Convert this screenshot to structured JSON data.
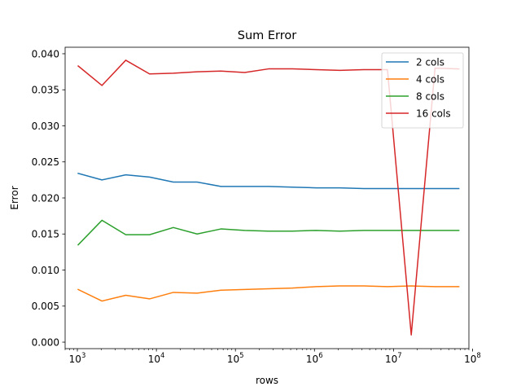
{
  "chart_data": {
    "type": "line",
    "title": "Sum Error",
    "xlabel": "rows",
    "ylabel": "Error",
    "x_scale": "log",
    "xlim": [
      700,
      90000000
    ],
    "ylim": [
      -0.0009,
      0.0409
    ],
    "x_ticks": [
      {
        "value": 1000,
        "base": "10",
        "exp": "3"
      },
      {
        "value": 10000,
        "base": "10",
        "exp": "4"
      },
      {
        "value": 100000,
        "base": "10",
        "exp": "5"
      },
      {
        "value": 1000000,
        "base": "10",
        "exp": "6"
      },
      {
        "value": 10000000,
        "base": "10",
        "exp": "7"
      },
      {
        "value": 100000000,
        "base": "10",
        "exp": "8"
      }
    ],
    "y_ticks": [
      {
        "value": 0.0,
        "label": "0.000"
      },
      {
        "value": 0.005,
        "label": "0.005"
      },
      {
        "value": 0.01,
        "label": "0.010"
      },
      {
        "value": 0.015,
        "label": "0.015"
      },
      {
        "value": 0.02,
        "label": "0.020"
      },
      {
        "value": 0.025,
        "label": "0.025"
      },
      {
        "value": 0.03,
        "label": "0.030"
      },
      {
        "value": 0.035,
        "label": "0.035"
      },
      {
        "value": 0.04,
        "label": "0.040"
      }
    ],
    "grid": false,
    "legend_position": "top-right",
    "x": [
      1024,
      2048,
      4096,
      8192,
      16384,
      32768,
      65536,
      131072,
      262144,
      524288,
      1048576,
      2097152,
      4194304,
      8388608,
      16777216,
      33554432,
      67108864
    ],
    "series": [
      {
        "name": "2 cols",
        "color": "#1f77b4",
        "values": [
          0.0234,
          0.0225,
          0.0232,
          0.0229,
          0.0222,
          0.0222,
          0.0216,
          0.0216,
          0.0216,
          0.0215,
          0.0214,
          0.0214,
          0.0213,
          0.0213,
          0.0213,
          0.0213,
          0.0213
        ]
      },
      {
        "name": "4 cols",
        "color": "#ff7f0e",
        "values": [
          0.0073,
          0.0057,
          0.0065,
          0.006,
          0.0069,
          0.0068,
          0.0072,
          0.0073,
          0.0074,
          0.0075,
          0.0077,
          0.0078,
          0.0078,
          0.0077,
          0.0078,
          0.0077,
          0.0077
        ]
      },
      {
        "name": "8 cols",
        "color": "#2ca02c",
        "values": [
          0.0135,
          0.0169,
          0.0149,
          0.0149,
          0.0159,
          0.015,
          0.0157,
          0.0155,
          0.0154,
          0.0154,
          0.0155,
          0.0154,
          0.0155,
          0.0155,
          0.0155,
          0.0155,
          0.0155
        ]
      },
      {
        "name": "16 cols",
        "color": "#d62728",
        "values": [
          0.0383,
          0.0356,
          0.0391,
          0.0372,
          0.0373,
          0.0375,
          0.0376,
          0.0374,
          0.0379,
          0.0379,
          0.0378,
          0.0377,
          0.0378,
          0.0378,
          0.001,
          0.038,
          0.0379
        ]
      }
    ]
  }
}
